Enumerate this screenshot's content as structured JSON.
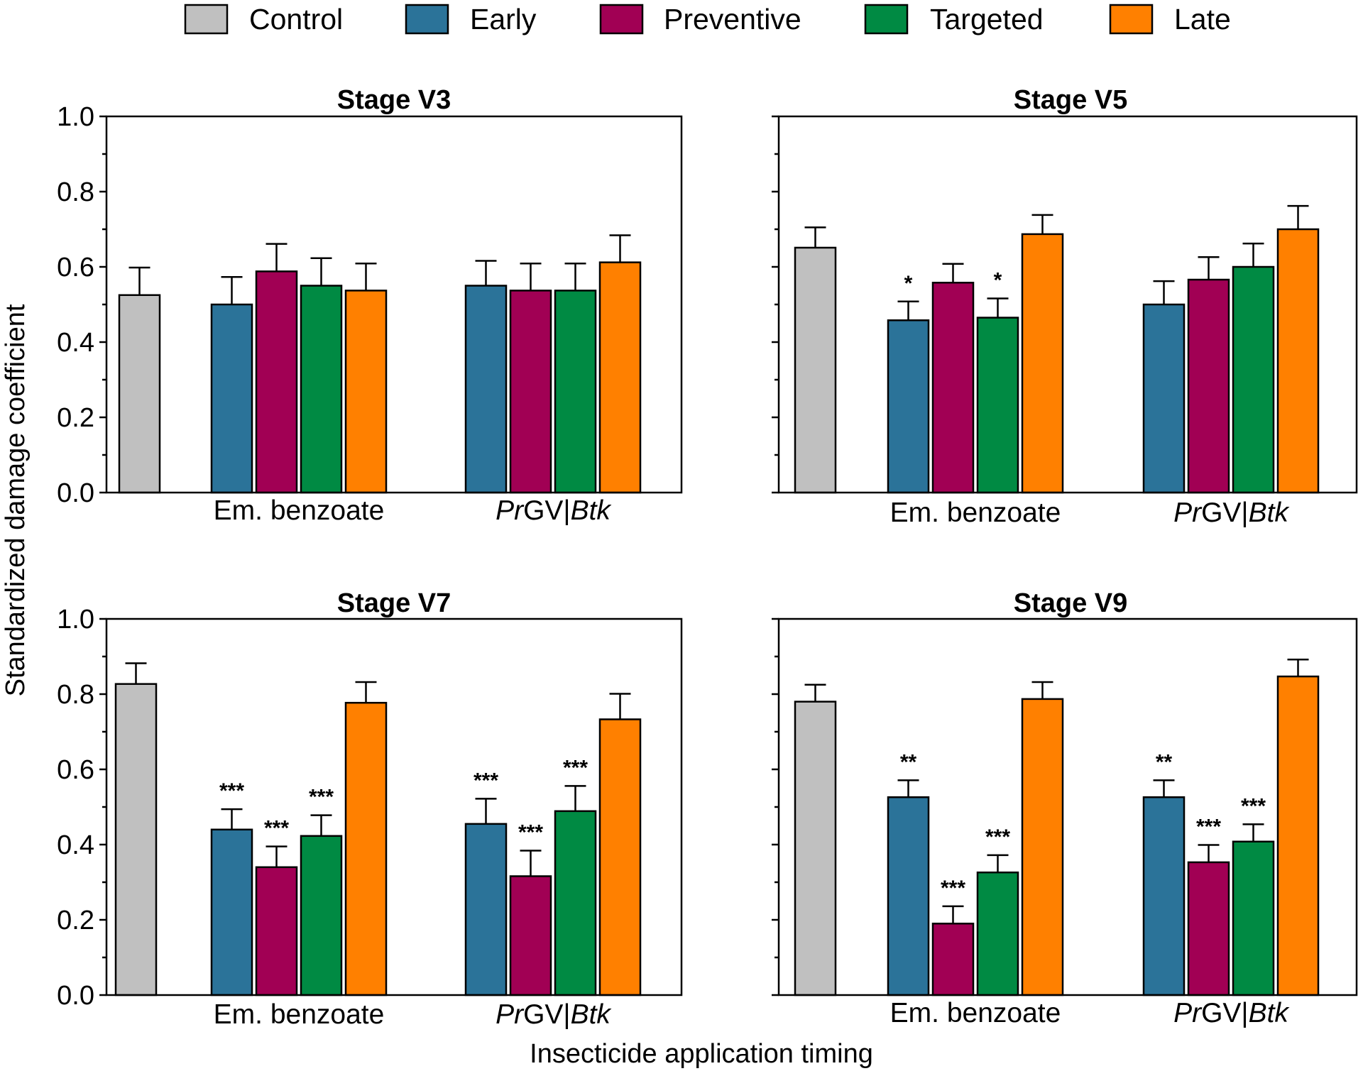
{
  "chart_data": {
    "type": "bar",
    "xlabel": "Insecticide application timing",
    "ylabel": "Standardized damage coefficient",
    "ylim": [
      0,
      1.0
    ],
    "y_ticks": [
      "0.0",
      "0.2",
      "0.4",
      "0.6",
      "0.8",
      "1.0"
    ],
    "grid": false,
    "legend": {
      "position": "top",
      "entries": [
        {
          "name": "Control",
          "color": "#c0c0c0"
        },
        {
          "name": "Early",
          "color": "#2b7399"
        },
        {
          "name": "Preventive",
          "color": "#a10054"
        },
        {
          "name": "Targeted",
          "color": "#008a43"
        },
        {
          "name": "Late",
          "color": "#ff8000"
        }
      ]
    },
    "groups": [
      {
        "key": "em",
        "label": "Em. benzoate"
      },
      {
        "key": "pr",
        "label_parts": [
          {
            "text": "Pr",
            "italic": true
          },
          {
            "text": "GV|",
            "italic": false
          },
          {
            "text": "Btk",
            "italic": true
          }
        ]
      }
    ],
    "panels": [
      {
        "title": "Stage V3",
        "control": {
          "value": 0.525,
          "error": 0.073
        },
        "em": {
          "values": [
            0.5,
            0.588,
            0.55,
            0.537
          ],
          "errors": [
            0.073,
            0.073,
            0.073,
            0.072
          ],
          "significance": [
            "",
            "",
            "",
            ""
          ]
        },
        "pr": {
          "values": [
            0.55,
            0.537,
            0.537,
            0.612
          ],
          "errors": [
            0.066,
            0.072,
            0.072,
            0.072
          ],
          "significance": [
            "",
            "",
            "",
            ""
          ]
        }
      },
      {
        "title": "Stage V5",
        "control": {
          "value": 0.651,
          "error": 0.054
        },
        "em": {
          "values": [
            0.458,
            0.558,
            0.465,
            0.687
          ],
          "errors": [
            0.05,
            0.05,
            0.051,
            0.051
          ],
          "significance": [
            "*",
            "",
            "*",
            ""
          ]
        },
        "pr": {
          "values": [
            0.5,
            0.566,
            0.6,
            0.7
          ],
          "errors": [
            0.062,
            0.06,
            0.062,
            0.062
          ],
          "significance": [
            "",
            "",
            "",
            ""
          ]
        }
      },
      {
        "title": "Stage V7",
        "control": {
          "value": 0.827,
          "error": 0.055
        },
        "em": {
          "values": [
            0.44,
            0.34,
            0.423,
            0.777
          ],
          "errors": [
            0.054,
            0.055,
            0.055,
            0.055
          ],
          "significance": [
            "***",
            "***",
            "***",
            ""
          ]
        },
        "pr": {
          "values": [
            0.455,
            0.316,
            0.489,
            0.733
          ],
          "errors": [
            0.067,
            0.068,
            0.067,
            0.068
          ],
          "significance": [
            "***",
            "***",
            "***",
            ""
          ]
        }
      },
      {
        "title": "Stage V9",
        "control": {
          "value": 0.78,
          "error": 0.045
        },
        "em": {
          "values": [
            0.526,
            0.19,
            0.326,
            0.787
          ],
          "errors": [
            0.045,
            0.046,
            0.046,
            0.045
          ],
          "significance": [
            "**",
            "***",
            "***",
            ""
          ]
        },
        "pr": {
          "values": [
            0.526,
            0.353,
            0.408,
            0.847
          ],
          "errors": [
            0.045,
            0.046,
            0.046,
            0.045
          ],
          "significance": [
            "**",
            "***",
            "***",
            ""
          ]
        }
      }
    ]
  }
}
